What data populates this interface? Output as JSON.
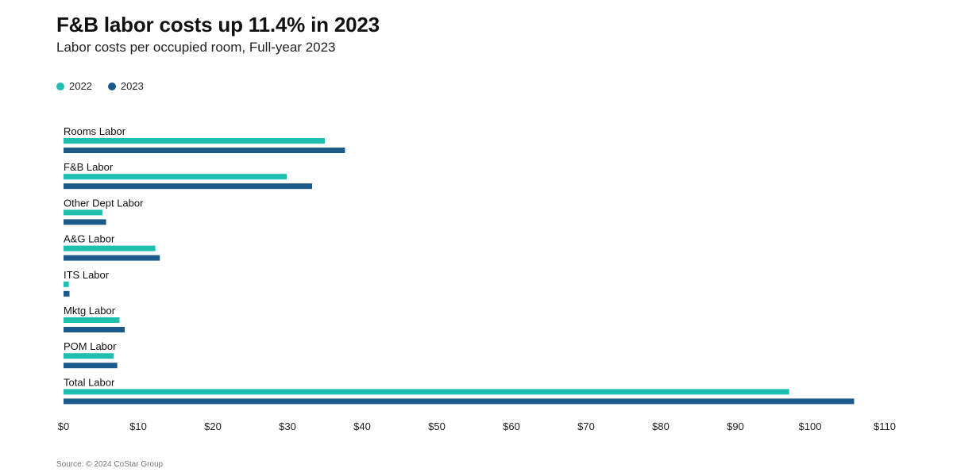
{
  "title": "F&B labor costs up 11.4% in 2023",
  "subtitle": "Labor costs per occupied room, Full-year 2023",
  "source": "Source: © 2024 CoStar Group",
  "colors": {
    "2022": "#1fbfb0",
    "2023": "#1c5a8c"
  },
  "chart_data": {
    "type": "bar",
    "orientation": "horizontal",
    "title": "F&B labor costs up 11.4% in 2023",
    "subtitle": "Labor costs per occupied room, Full-year 2023",
    "categories": [
      "Rooms Labor",
      "F&B Labor",
      "Other Dept Labor",
      "A&G Labor",
      "ITS Labor",
      "Mktg Labor",
      "POM Labor",
      "Total Labor"
    ],
    "series": [
      {
        "name": "2022",
        "color": "#1fbfb0",
        "values": [
          35.0,
          29.9,
          5.2,
          12.3,
          0.7,
          7.5,
          6.7,
          97.2
        ]
      },
      {
        "name": "2023",
        "color": "#1c5a8c",
        "values": [
          37.7,
          33.3,
          5.7,
          12.9,
          0.8,
          8.2,
          7.2,
          105.9
        ]
      }
    ],
    "xlim": [
      0,
      110
    ],
    "xticks": [
      0,
      10,
      20,
      30,
      40,
      50,
      60,
      70,
      80,
      90,
      100,
      110
    ],
    "xtick_labels": [
      "$0",
      "$10",
      "$20",
      "$30",
      "$40",
      "$50",
      "$60",
      "$70",
      "$80",
      "$90",
      "$100",
      "$110"
    ],
    "xlabel": "",
    "ylabel": "",
    "grid": false,
    "legend": "top-left"
  }
}
